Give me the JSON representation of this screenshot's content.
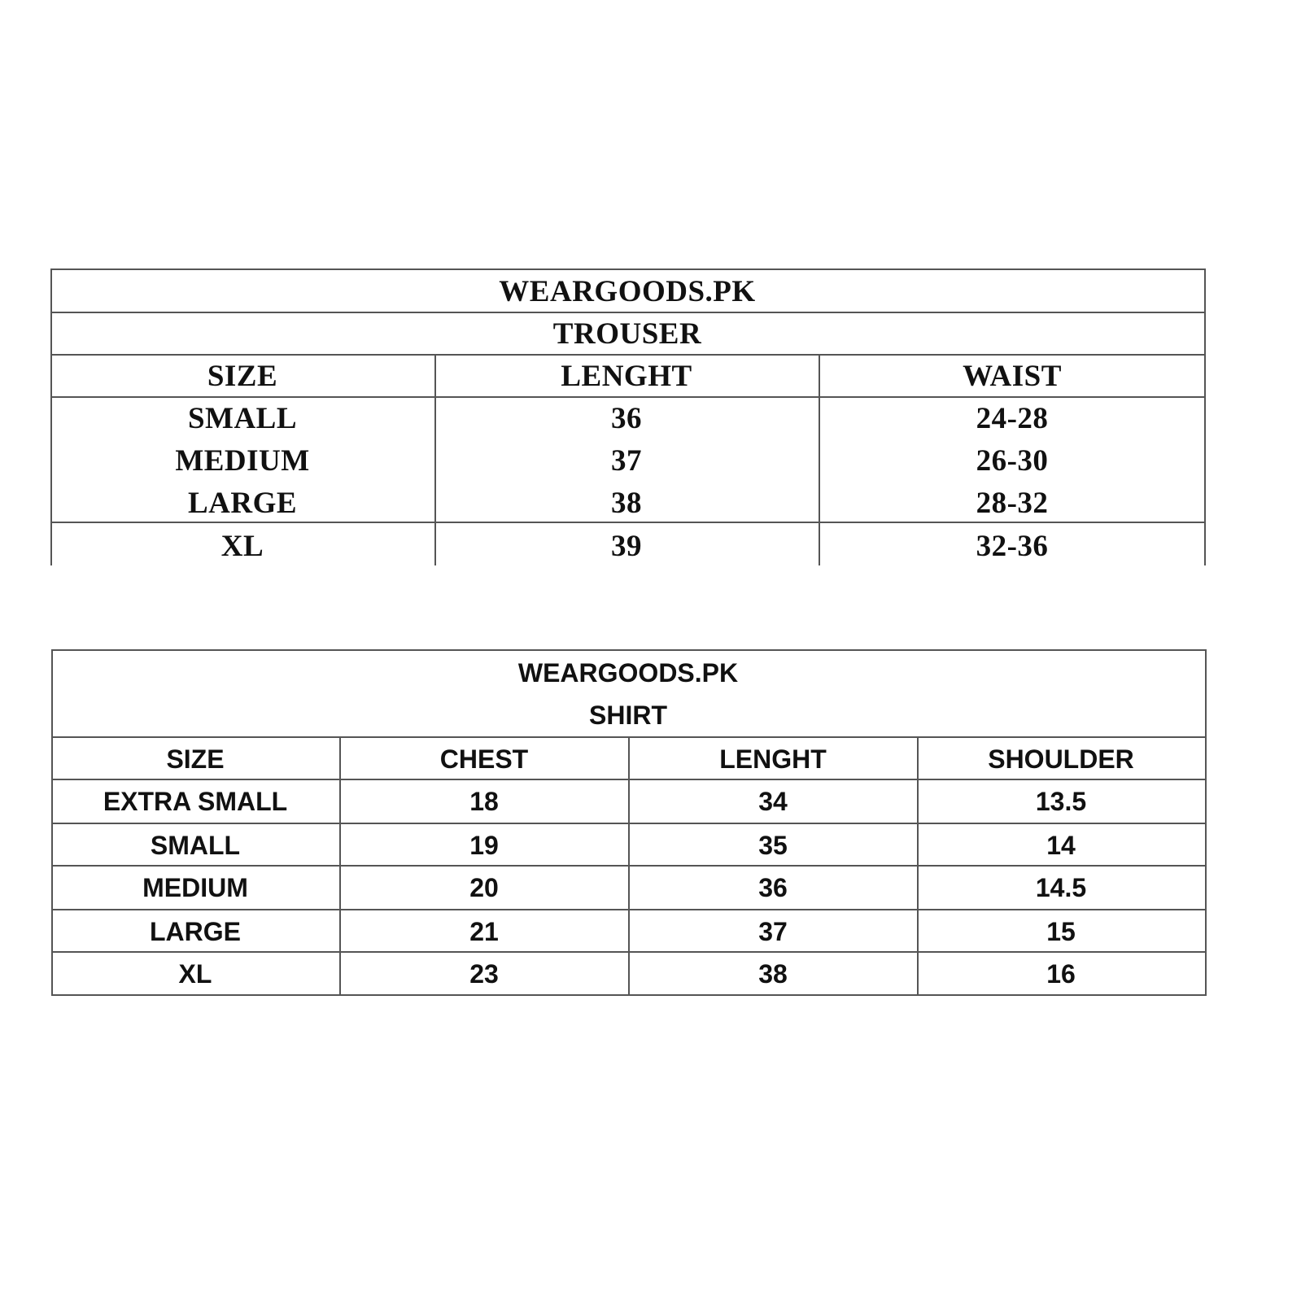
{
  "trouser_table": {
    "brand": "WEARGOODS.PK",
    "title": "TROUSER",
    "headers": [
      "SIZE",
      "LENGHT",
      "WAIST"
    ],
    "rows": [
      [
        "SMALL",
        "36",
        "24-28"
      ],
      [
        "MEDIUM",
        "37",
        "26-30"
      ],
      [
        "LARGE",
        "38",
        "28-32"
      ],
      [
        "XL",
        "39",
        "32-36"
      ]
    ]
  },
  "shirt_table": {
    "brand": "WEARGOODS.PK",
    "title": "SHIRT",
    "headers": [
      "SIZE",
      "CHEST",
      "LENGHT",
      "SHOULDER"
    ],
    "rows": [
      [
        "EXTRA SMALL",
        "18",
        "34",
        "13.5"
      ],
      [
        "SMALL",
        "19",
        "35",
        "14"
      ],
      [
        "MEDIUM",
        "20",
        "36",
        "14.5"
      ],
      [
        "LARGE",
        "21",
        "37",
        "15"
      ],
      [
        "XL",
        "23",
        "38",
        "16"
      ]
    ]
  }
}
